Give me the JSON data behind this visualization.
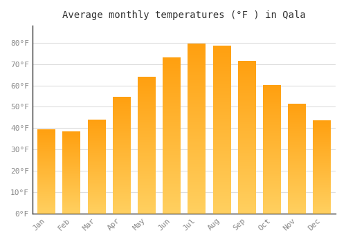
{
  "title": "Average monthly temperatures (°F ) in Qala",
  "months": [
    "Jan",
    "Feb",
    "Mar",
    "Apr",
    "May",
    "Jun",
    "Jul",
    "Aug",
    "Sep",
    "Oct",
    "Nov",
    "Dec"
  ],
  "values": [
    39.5,
    38.5,
    44.0,
    54.5,
    64.0,
    73.0,
    79.5,
    78.5,
    71.5,
    60.0,
    51.5,
    43.5
  ],
  "bar_color_bottom": "#FFD060",
  "bar_color_top": "#FFA010",
  "ylim": [
    0,
    88
  ],
  "yticks": [
    0,
    10,
    20,
    30,
    40,
    50,
    60,
    70,
    80
  ],
  "ytick_labels": [
    "0°F",
    "10°F",
    "20°F",
    "30°F",
    "40°F",
    "50°F",
    "60°F",
    "70°F",
    "80°F"
  ],
  "grid_color": "#dddddd",
  "background_color": "#ffffff",
  "title_fontsize": 10,
  "tick_fontsize": 8,
  "tick_color": "#888888",
  "bar_width": 0.7
}
